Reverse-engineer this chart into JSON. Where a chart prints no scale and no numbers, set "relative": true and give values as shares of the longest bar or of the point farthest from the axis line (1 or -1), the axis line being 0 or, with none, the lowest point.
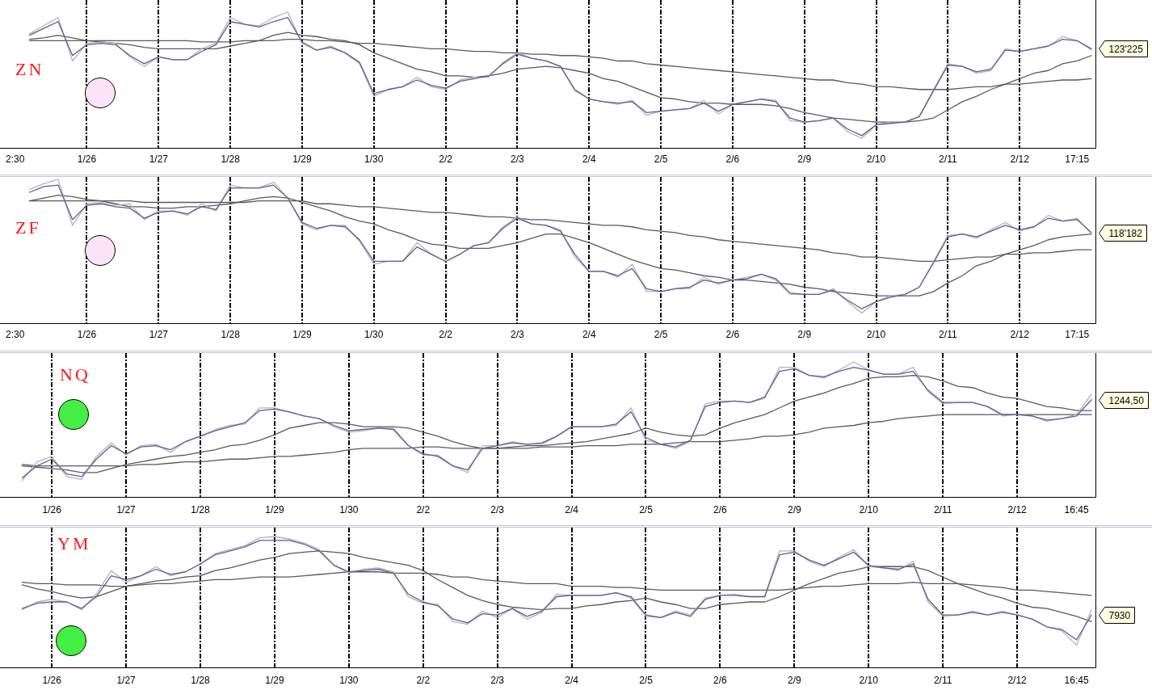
{
  "chart_data": [
    {
      "type": "line",
      "title": "ZN",
      "relative": true,
      "categories": [
        "2:30",
        null,
        null,
        null,
        null,
        "1/26",
        null,
        null,
        null,
        null,
        "1/27",
        null,
        null,
        null,
        null,
        "1/28",
        null,
        null,
        null,
        null,
        "1/29",
        null,
        null,
        null,
        null,
        "1/30",
        null,
        null,
        null,
        null,
        "2/2",
        null,
        null,
        null,
        null,
        "2/3",
        null,
        null,
        null,
        null,
        "2/4",
        null,
        null,
        null,
        null,
        "2/5",
        null,
        null,
        null,
        null,
        "2/6",
        null,
        null,
        null,
        null,
        "2/9",
        null,
        null,
        null,
        null,
        "2/10",
        null,
        null,
        null,
        null,
        "2/11",
        null,
        null,
        null,
        null,
        "2/12",
        null,
        null,
        null,
        "17:15",
        null
      ],
      "series": [
        {
          "color": "#5c5ca0",
          "values": [
            null,
            0.83,
            0.88,
            0.93,
            0.68,
            0.76,
            0.77,
            0.76,
            0.68,
            0.62,
            0.67,
            0.65,
            0.65,
            0.71,
            0.76,
            0.93,
            0.91,
            0.89,
            0.93,
            0.96,
            0.78,
            0.72,
            0.74,
            0.7,
            0.63,
            0.4,
            0.43,
            0.45,
            0.5,
            0.46,
            0.44,
            0.49,
            0.51,
            0.53,
            0.62,
            0.69,
            0.66,
            0.64,
            0.6,
            0.43,
            0.36,
            0.34,
            0.33,
            0.34,
            0.26,
            0.27,
            0.28,
            0.29,
            0.33,
            0.27,
            0.32,
            0.34,
            0.36,
            0.34,
            0.22,
            0.19,
            0.2,
            0.22,
            0.14,
            0.09,
            0.17,
            0.18,
            0.19,
            0.23,
            0.42,
            0.61,
            0.6,
            0.56,
            0.58,
            0.72,
            0.71,
            0.73,
            0.75,
            0.8,
            0.79,
            0.73
          ]
        },
        {
          "color": "#b4b4b4",
          "values": [
            null,
            0.84,
            0.9,
            0.96,
            0.64,
            0.77,
            0.78,
            0.77,
            0.67,
            0.6,
            0.67,
            0.65,
            0.65,
            0.73,
            0.77,
            0.96,
            0.91,
            0.9,
            0.96,
            1,
            0.77,
            0.72,
            0.75,
            0.7,
            0.62,
            0.38,
            0.43,
            0.45,
            0.52,
            0.45,
            0.43,
            0.5,
            0.52,
            0.52,
            0.63,
            0.7,
            0.66,
            0.64,
            0.6,
            0.42,
            0.36,
            0.34,
            0.32,
            0.35,
            0.24,
            0.27,
            0.28,
            0.29,
            0.35,
            0.25,
            0.32,
            0.34,
            0.36,
            0.35,
            0.2,
            0.19,
            0.2,
            0.22,
            0.12,
            0.07,
            0.17,
            0.19,
            0.19,
            0.23,
            0.43,
            0.62,
            0.6,
            0.55,
            0.57,
            0.73,
            0.71,
            0.73,
            0.75,
            0.82,
            0.79,
            0.72
          ]
        },
        {
          "color": "#5a5a5a",
          "values": [
            null,
            0.8,
            0.81,
            0.83,
            0.81,
            0.79,
            0.78,
            0.77,
            0.76,
            0.74,
            0.73,
            0.73,
            0.73,
            0.73,
            0.73,
            0.75,
            0.77,
            0.79,
            0.83,
            0.85,
            0.83,
            0.82,
            0.8,
            0.79,
            0.76,
            0.7,
            0.66,
            0.62,
            0.58,
            0.56,
            0.53,
            0.53,
            0.52,
            0.53,
            0.55,
            0.58,
            0.59,
            0.6,
            0.59,
            0.57,
            0.55,
            0.51,
            0.49,
            0.45,
            0.41,
            0.37,
            0.36,
            0.34,
            0.33,
            0.33,
            0.32,
            0.32,
            0.32,
            0.31,
            0.29,
            0.26,
            0.24,
            0.22,
            0.21,
            0.2,
            0.19,
            0.19,
            0.19,
            0.2,
            0.22,
            0.28,
            0.34,
            0.38,
            0.43,
            0.47,
            0.51,
            0.55,
            0.57,
            0.62,
            0.64,
            0.68
          ]
        },
        {
          "color": "#5a5a5a",
          "values": [
            null,
            0.79,
            0.79,
            0.79,
            0.79,
            0.79,
            0.79,
            0.79,
            0.79,
            0.79,
            0.79,
            0.79,
            0.79,
            0.78,
            0.78,
            0.78,
            0.79,
            0.79,
            0.79,
            0.8,
            0.8,
            0.79,
            0.79,
            0.78,
            0.77,
            0.77,
            0.76,
            0.75,
            0.74,
            0.73,
            0.73,
            0.72,
            0.71,
            0.71,
            0.7,
            0.7,
            0.69,
            0.69,
            0.68,
            0.68,
            0.67,
            0.66,
            0.64,
            0.64,
            0.62,
            0.61,
            0.6,
            0.59,
            0.58,
            0.57,
            0.56,
            0.55,
            0.54,
            0.53,
            0.52,
            0.51,
            0.5,
            0.5,
            0.48,
            0.47,
            0.45,
            0.45,
            0.44,
            0.43,
            0.43,
            0.43,
            0.44,
            0.45,
            0.45,
            0.47,
            0.47,
            0.48,
            0.49,
            0.5,
            0.5,
            0.51
          ]
        }
      ],
      "ref_lines": [
        {
          "axis": "x",
          "value": "1/26",
          "color": "#000000",
          "line_style": "dashed"
        },
        {
          "axis": "x",
          "value": "1/27",
          "color": "#000000",
          "line_style": "dashed"
        },
        {
          "axis": "x",
          "value": "1/28",
          "color": "#000000",
          "line_style": "dashed"
        },
        {
          "axis": "x",
          "value": "1/29",
          "color": "#000000",
          "line_style": "dashed"
        },
        {
          "axis": "x",
          "value": "1/30",
          "color": "#000000",
          "line_style": "dashed"
        },
        {
          "axis": "x",
          "value": "2/2",
          "color": "#000000",
          "line_style": "dashed"
        },
        {
          "axis": "x",
          "value": "2/3",
          "color": "#000000",
          "line_style": "dashed"
        },
        {
          "axis": "x",
          "value": "2/4",
          "color": "#000000",
          "line_style": "dashed"
        },
        {
          "axis": "x",
          "value": "2/5",
          "color": "#000000",
          "line_style": "dashed"
        },
        {
          "axis": "x",
          "value": "2/6",
          "color": "#000000",
          "line_style": "dashed"
        },
        {
          "axis": "x",
          "value": "2/9",
          "color": "#000000",
          "line_style": "dashed"
        },
        {
          "axis": "x",
          "value": "2/10",
          "color": "#000000",
          "line_style": "dashed"
        },
        {
          "axis": "x",
          "value": "2/11",
          "color": "#000000",
          "line_style": "dashed"
        },
        {
          "axis": "x",
          "value": "2/12",
          "color": "#000000",
          "line_style": "dashed"
        }
      ],
      "annotations": [
        "123'225"
      ]
    },
    {
      "type": "line",
      "title": "ZF",
      "relative": true,
      "categories": [
        "2:30",
        null,
        null,
        null,
        null,
        "1/26",
        null,
        null,
        null,
        null,
        "1/27",
        null,
        null,
        null,
        null,
        "1/28",
        null,
        null,
        null,
        null,
        "1/29",
        null,
        null,
        null,
        null,
        "1/30",
        null,
        null,
        null,
        null,
        "2/2",
        null,
        null,
        null,
        null,
        "2/3",
        null,
        null,
        null,
        null,
        "2/4",
        null,
        null,
        null,
        null,
        "2/5",
        null,
        null,
        null,
        null,
        "2/6",
        null,
        null,
        null,
        null,
        "2/9",
        null,
        null,
        null,
        null,
        "2/10",
        null,
        null,
        null,
        null,
        "2/11",
        null,
        null,
        null,
        null,
        "2/12",
        null,
        null,
        null,
        "17:15",
        null
      ],
      "series": [
        {
          "color": "#5c5ca0",
          "values": [
            null,
            0.91,
            0.95,
            0.96,
            0.72,
            0.82,
            0.83,
            0.81,
            0.8,
            0.73,
            0.77,
            0.78,
            0.76,
            0.81,
            0.79,
            0.94,
            0.94,
            0.94,
            0.96,
            0.87,
            0.7,
            0.66,
            0.68,
            0.67,
            0.58,
            0.43,
            0.43,
            0.43,
            0.53,
            0.48,
            0.43,
            0.48,
            0.54,
            0.56,
            0.66,
            0.73,
            0.69,
            0.68,
            0.64,
            0.48,
            0.36,
            0.36,
            0.33,
            0.38,
            0.24,
            0.22,
            0.24,
            0.25,
            0.3,
            0.28,
            0.3,
            0.31,
            0.34,
            0.31,
            0.21,
            0.2,
            0.2,
            0.23,
            0.16,
            0.1,
            0.15,
            0.18,
            0.2,
            0.25,
            0.42,
            0.6,
            0.62,
            0.6,
            0.64,
            0.68,
            0.65,
            0.67,
            0.73,
            0.71,
            0.72,
            0.63
          ]
        },
        {
          "color": "#b4b4b4",
          "values": [
            null,
            0.93,
            0.97,
            1,
            0.68,
            0.83,
            0.84,
            0.82,
            0.83,
            0.72,
            0.78,
            0.78,
            0.75,
            0.83,
            0.78,
            0.96,
            0.94,
            0.94,
            0.98,
            0.87,
            0.69,
            0.65,
            0.68,
            0.68,
            0.57,
            0.41,
            0.43,
            0.43,
            0.56,
            0.48,
            0.43,
            0.48,
            0.54,
            0.56,
            0.67,
            0.74,
            0.69,
            0.68,
            0.65,
            0.46,
            0.36,
            0.36,
            0.32,
            0.41,
            0.22,
            0.22,
            0.24,
            0.24,
            0.32,
            0.27,
            0.3,
            0.32,
            0.34,
            0.3,
            0.2,
            0.2,
            0.2,
            0.24,
            0.15,
            0.07,
            0.15,
            0.19,
            0.2,
            0.25,
            0.43,
            0.61,
            0.62,
            0.59,
            0.65,
            0.7,
            0.64,
            0.67,
            0.75,
            0.71,
            0.73,
            0.62
          ]
        },
        {
          "color": "#5a5a5a",
          "values": [
            null,
            0.85,
            0.87,
            0.89,
            0.88,
            0.86,
            0.85,
            0.83,
            0.81,
            0.81,
            0.8,
            0.8,
            0.81,
            0.81,
            0.82,
            0.83,
            0.85,
            0.87,
            0.88,
            0.87,
            0.84,
            0.81,
            0.78,
            0.74,
            0.71,
            0.69,
            0.65,
            0.62,
            0.58,
            0.55,
            0.54,
            0.52,
            0.52,
            0.52,
            0.54,
            0.56,
            0.59,
            0.62,
            0.62,
            0.59,
            0.56,
            0.52,
            0.48,
            0.44,
            0.41,
            0.38,
            0.37,
            0.35,
            0.33,
            0.32,
            0.3,
            0.3,
            0.29,
            0.28,
            0.27,
            0.25,
            0.24,
            0.22,
            0.21,
            0.2,
            0.19,
            0.19,
            0.19,
            0.19,
            0.22,
            0.28,
            0.33,
            0.4,
            0.43,
            0.48,
            0.51,
            0.54,
            0.58,
            0.6,
            0.61,
            0.62
          ]
        },
        {
          "color": "#5a5a5a",
          "values": [
            null,
            0.85,
            0.85,
            0.85,
            0.85,
            0.85,
            0.85,
            0.85,
            0.85,
            0.84,
            0.84,
            0.84,
            0.84,
            0.84,
            0.84,
            0.84,
            0.84,
            0.85,
            0.85,
            0.85,
            0.85,
            0.83,
            0.83,
            0.82,
            0.81,
            0.81,
            0.8,
            0.79,
            0.78,
            0.77,
            0.77,
            0.76,
            0.75,
            0.74,
            0.74,
            0.73,
            0.72,
            0.72,
            0.71,
            0.7,
            0.69,
            0.68,
            0.68,
            0.67,
            0.65,
            0.64,
            0.63,
            0.61,
            0.6,
            0.58,
            0.57,
            0.56,
            0.55,
            0.54,
            0.53,
            0.52,
            0.51,
            0.49,
            0.48,
            0.46,
            0.46,
            0.45,
            0.44,
            0.43,
            0.43,
            0.44,
            0.45,
            0.46,
            0.46,
            0.48,
            0.48,
            0.49,
            0.49,
            0.5,
            0.51,
            0.51
          ]
        }
      ],
      "ref_lines": [
        {
          "axis": "x",
          "value": "1/26",
          "color": "#000000",
          "line_style": "dashed"
        },
        {
          "axis": "x",
          "value": "1/27",
          "color": "#000000",
          "line_style": "dashed"
        },
        {
          "axis": "x",
          "value": "1/28",
          "color": "#000000",
          "line_style": "dashed"
        },
        {
          "axis": "x",
          "value": "1/29",
          "color": "#000000",
          "line_style": "dashed"
        },
        {
          "axis": "x",
          "value": "1/30",
          "color": "#000000",
          "line_style": "dashed"
        },
        {
          "axis": "x",
          "value": "2/2",
          "color": "#000000",
          "line_style": "dashed"
        },
        {
          "axis": "x",
          "value": "2/3",
          "color": "#000000",
          "line_style": "dashed"
        },
        {
          "axis": "x",
          "value": "2/4",
          "color": "#000000",
          "line_style": "dashed"
        },
        {
          "axis": "x",
          "value": "2/5",
          "color": "#000000",
          "line_style": "dashed"
        },
        {
          "axis": "x",
          "value": "2/6",
          "color": "#000000",
          "line_style": "dashed"
        },
        {
          "axis": "x",
          "value": "2/9",
          "color": "#000000",
          "line_style": "dashed"
        },
        {
          "axis": "x",
          "value": "2/10",
          "color": "#000000",
          "line_style": "dashed"
        },
        {
          "axis": "x",
          "value": "2/11",
          "color": "#000000",
          "line_style": "dashed"
        },
        {
          "axis": "x",
          "value": "2/12",
          "color": "#000000",
          "line_style": "dashed"
        }
      ],
      "annotations": [
        "118'182"
      ]
    },
    {
      "type": "line",
      "title": "NQ",
      "relative": true,
      "categories": [
        null,
        null,
        null,
        "1/26",
        null,
        null,
        null,
        null,
        "1/27",
        null,
        null,
        null,
        null,
        "1/28",
        null,
        null,
        null,
        null,
        "1/29",
        null,
        null,
        null,
        null,
        "1/30",
        null,
        null,
        null,
        null,
        "2/2",
        null,
        null,
        null,
        null,
        "2/3",
        null,
        null,
        null,
        null,
        "2/4",
        null,
        null,
        null,
        null,
        "2/5",
        null,
        null,
        null,
        null,
        "2/6",
        null,
        null,
        null,
        null,
        "2/9",
        null,
        null,
        null,
        null,
        "2/10",
        null,
        null,
        null,
        null,
        "2/11",
        null,
        null,
        null,
        null,
        "2/12",
        null,
        null,
        null,
        "16:45",
        null
      ],
      "series": [
        {
          "color": "#5c5ca0",
          "values": [
            null,
            0.14,
            0.23,
            0.28,
            0.17,
            0.15,
            0.28,
            0.38,
            0.32,
            0.37,
            0.38,
            0.35,
            0.41,
            0.45,
            0.49,
            0.52,
            0.55,
            0.64,
            0.65,
            0.63,
            0.6,
            0.58,
            0.53,
            0.49,
            0.5,
            0.51,
            0.5,
            0.38,
            0.32,
            0.3,
            0.23,
            0.2,
            0.36,
            0.38,
            0.4,
            0.39,
            0.4,
            0.45,
            0.52,
            0.52,
            0.52,
            0.54,
            0.63,
            0.44,
            0.39,
            0.37,
            0.42,
            0.67,
            0.7,
            0.71,
            0.7,
            0.74,
            0.93,
            0.95,
            0.9,
            0.89,
            0.93,
            0.96,
            0.94,
            0.91,
            0.91,
            0.93,
            0.79,
            0.7,
            0.7,
            0.7,
            0.67,
            0.61,
            0.61,
            0.6,
            0.57,
            0.58,
            0.6,
            0.72
          ]
        },
        {
          "color": "#b4b4b4",
          "values": [
            null,
            0.12,
            0.26,
            0.3,
            0.15,
            0.13,
            0.3,
            0.4,
            0.31,
            0.38,
            0.39,
            0.33,
            0.41,
            0.45,
            0.5,
            0.53,
            0.54,
            0.66,
            0.66,
            0.63,
            0.6,
            0.58,
            0.52,
            0.48,
            0.49,
            0.51,
            0.51,
            0.38,
            0.31,
            0.31,
            0.23,
            0.18,
            0.38,
            0.38,
            0.41,
            0.39,
            0.39,
            0.45,
            0.52,
            0.52,
            0.52,
            0.53,
            0.66,
            0.42,
            0.39,
            0.36,
            0.41,
            0.69,
            0.71,
            0.71,
            0.7,
            0.73,
            0.96,
            0.96,
            0.9,
            0.88,
            0.94,
            1,
            0.94,
            0.91,
            0.91,
            0.96,
            0.78,
            0.69,
            0.7,
            0.7,
            0.67,
            0.6,
            0.61,
            0.6,
            0.56,
            0.58,
            0.61,
            0.76
          ]
        },
        {
          "color": "#5a5a5a",
          "values": [
            null,
            0.23,
            0.22,
            0.21,
            0.2,
            0.18,
            0.18,
            0.21,
            0.24,
            0.26,
            0.28,
            0.3,
            0.31,
            0.33,
            0.35,
            0.38,
            0.39,
            0.42,
            0.46,
            0.51,
            0.53,
            0.55,
            0.55,
            0.54,
            0.52,
            0.52,
            0.52,
            0.51,
            0.48,
            0.45,
            0.41,
            0.38,
            0.36,
            0.36,
            0.37,
            0.38,
            0.38,
            0.39,
            0.4,
            0.41,
            0.43,
            0.45,
            0.47,
            0.51,
            0.48,
            0.46,
            0.45,
            0.46,
            0.51,
            0.55,
            0.58,
            0.61,
            0.66,
            0.71,
            0.74,
            0.77,
            0.81,
            0.84,
            0.88,
            0.89,
            0.89,
            0.9,
            0.89,
            0.86,
            0.82,
            0.81,
            0.77,
            0.74,
            0.73,
            0.7,
            0.67,
            0.66,
            0.64,
            0.64
          ]
        },
        {
          "color": "#5a5a5a",
          "values": [
            null,
            0.24,
            0.23,
            0.23,
            0.23,
            0.23,
            0.23,
            0.23,
            0.23,
            0.24,
            0.24,
            0.25,
            0.26,
            0.26,
            0.27,
            0.28,
            0.28,
            0.29,
            0.3,
            0.3,
            0.31,
            0.32,
            0.33,
            0.35,
            0.36,
            0.36,
            0.36,
            0.36,
            0.37,
            0.37,
            0.36,
            0.36,
            0.36,
            0.36,
            0.36,
            0.36,
            0.37,
            0.37,
            0.37,
            0.38,
            0.38,
            0.38,
            0.39,
            0.39,
            0.39,
            0.4,
            0.41,
            0.41,
            0.41,
            0.42,
            0.43,
            0.45,
            0.45,
            0.46,
            0.48,
            0.51,
            0.52,
            0.53,
            0.55,
            0.56,
            0.58,
            0.59,
            0.6,
            0.61,
            0.61,
            0.61,
            0.61,
            0.61,
            0.61,
            0.61,
            0.61,
            0.61,
            0.61,
            0.61
          ]
        }
      ],
      "ref_lines": [
        {
          "axis": "x",
          "value": "1/26",
          "color": "#000000",
          "line_style": "dashed"
        },
        {
          "axis": "x",
          "value": "1/27",
          "color": "#000000",
          "line_style": "dashed"
        },
        {
          "axis": "x",
          "value": "1/28",
          "color": "#000000",
          "line_style": "dashed"
        },
        {
          "axis": "x",
          "value": "1/29",
          "color": "#000000",
          "line_style": "dashed"
        },
        {
          "axis": "x",
          "value": "1/30",
          "color": "#000000",
          "line_style": "dashed"
        },
        {
          "axis": "x",
          "value": "2/2",
          "color": "#000000",
          "line_style": "dashed"
        },
        {
          "axis": "x",
          "value": "2/3",
          "color": "#000000",
          "line_style": "dashed"
        },
        {
          "axis": "x",
          "value": "2/4",
          "color": "#000000",
          "line_style": "dashed"
        },
        {
          "axis": "x",
          "value": "2/5",
          "color": "#000000",
          "line_style": "dashed"
        },
        {
          "axis": "x",
          "value": "2/6",
          "color": "#000000",
          "line_style": "dashed"
        },
        {
          "axis": "x",
          "value": "2/9",
          "color": "#000000",
          "line_style": "dashed"
        },
        {
          "axis": "x",
          "value": "2/10",
          "color": "#000000",
          "line_style": "dashed"
        },
        {
          "axis": "x",
          "value": "2/11",
          "color": "#000000",
          "line_style": "dashed"
        },
        {
          "axis": "x",
          "value": "2/12",
          "color": "#000000",
          "line_style": "dashed"
        }
      ],
      "annotations": [
        "1244,50"
      ]
    },
    {
      "type": "line",
      "title": "YM",
      "relative": true,
      "categories": [
        null,
        null,
        null,
        "1/26",
        null,
        null,
        null,
        null,
        "1/27",
        null,
        null,
        null,
        null,
        "1/28",
        null,
        null,
        null,
        null,
        "1/29",
        null,
        null,
        null,
        null,
        "1/30",
        null,
        null,
        null,
        null,
        "2/2",
        null,
        null,
        null,
        null,
        "2/3",
        null,
        null,
        null,
        null,
        "2/4",
        null,
        null,
        null,
        null,
        "2/5",
        null,
        null,
        null,
        null,
        "2/6",
        null,
        null,
        null,
        null,
        "2/9",
        null,
        null,
        null,
        null,
        "2/10",
        null,
        null,
        null,
        null,
        "2/11",
        null,
        null,
        null,
        null,
        "2/12",
        null,
        null,
        null,
        "16:45",
        null
      ],
      "series": [
        {
          "color": "#5c5ca0",
          "values": [
            null,
            0.45,
            0.49,
            0.5,
            0.5,
            0.45,
            0.54,
            0.7,
            0.67,
            0.7,
            0.75,
            0.71,
            0.73,
            0.79,
            0.86,
            0.89,
            0.92,
            0.97,
            0.97,
            0.97,
            0.94,
            0.89,
            0.78,
            0.73,
            0.74,
            0.75,
            0.72,
            0.56,
            0.5,
            0.47,
            0.37,
            0.34,
            0.41,
            0.4,
            0.45,
            0.39,
            0.43,
            0.54,
            0.55,
            0.55,
            0.55,
            0.57,
            0.54,
            0.4,
            0.38,
            0.42,
            0.39,
            0.52,
            0.55,
            0.55,
            0.54,
            0.54,
            0.86,
            0.88,
            0.82,
            0.78,
            0.83,
            0.88,
            0.78,
            0.76,
            0.75,
            0.79,
            0.52,
            0.4,
            0.4,
            0.42,
            0.4,
            0.42,
            0.4,
            0.37,
            0.31,
            0.29,
            0.21,
            0.4
          ]
        },
        {
          "color": "#b4b4b4",
          "values": [
            null,
            0.44,
            0.5,
            0.52,
            0.5,
            0.44,
            0.56,
            0.74,
            0.65,
            0.7,
            0.77,
            0.7,
            0.73,
            0.79,
            0.87,
            0.9,
            0.93,
            0.99,
            1,
            0.98,
            0.95,
            0.9,
            0.78,
            0.72,
            0.75,
            0.76,
            0.73,
            0.54,
            0.49,
            0.48,
            0.35,
            0.33,
            0.43,
            0.38,
            0.45,
            0.37,
            0.42,
            0.56,
            0.55,
            0.55,
            0.55,
            0.57,
            0.53,
            0.39,
            0.38,
            0.43,
            0.4,
            0.53,
            0.55,
            0.56,
            0.54,
            0.54,
            0.89,
            0.89,
            0.81,
            0.77,
            0.84,
            0.9,
            0.77,
            0.76,
            0.74,
            0.81,
            0.5,
            0.39,
            0.4,
            0.43,
            0.4,
            0.43,
            0.4,
            0.37,
            0.31,
            0.28,
            0.17,
            0.44
          ]
        },
        {
          "color": "#5a5a5a",
          "values": [
            null,
            0.63,
            0.6,
            0.58,
            0.55,
            0.53,
            0.54,
            0.58,
            0.62,
            0.64,
            0.66,
            0.67,
            0.69,
            0.7,
            0.74,
            0.76,
            0.79,
            0.82,
            0.84,
            0.87,
            0.88,
            0.89,
            0.88,
            0.87,
            0.84,
            0.82,
            0.8,
            0.78,
            0.74,
            0.67,
            0.61,
            0.55,
            0.51,
            0.48,
            0.46,
            0.45,
            0.44,
            0.45,
            0.45,
            0.47,
            0.48,
            0.5,
            0.51,
            0.53,
            0.5,
            0.48,
            0.45,
            0.45,
            0.48,
            0.49,
            0.5,
            0.5,
            0.54,
            0.59,
            0.64,
            0.68,
            0.72,
            0.74,
            0.77,
            0.77,
            0.77,
            0.77,
            0.74,
            0.69,
            0.64,
            0.6,
            0.56,
            0.53,
            0.49,
            0.46,
            0.45,
            0.42,
            0.39,
            0.35
          ]
        },
        {
          "color": "#5a5a5a",
          "values": [
            null,
            0.65,
            0.64,
            0.64,
            0.63,
            0.63,
            0.63,
            0.62,
            0.62,
            0.63,
            0.64,
            0.64,
            0.65,
            0.66,
            0.67,
            0.67,
            0.68,
            0.69,
            0.69,
            0.69,
            0.7,
            0.71,
            0.72,
            0.73,
            0.73,
            0.73,
            0.72,
            0.72,
            0.72,
            0.71,
            0.69,
            0.69,
            0.67,
            0.66,
            0.65,
            0.64,
            0.64,
            0.64,
            0.62,
            0.62,
            0.62,
            0.61,
            0.61,
            0.6,
            0.59,
            0.59,
            0.59,
            0.59,
            0.59,
            0.59,
            0.59,
            0.59,
            0.59,
            0.6,
            0.61,
            0.62,
            0.62,
            0.63,
            0.64,
            0.64,
            0.64,
            0.65,
            0.64,
            0.64,
            0.64,
            0.63,
            0.62,
            0.61,
            0.59,
            0.59,
            0.58,
            0.57,
            0.56,
            0.55
          ]
        }
      ],
      "ref_lines": [
        {
          "axis": "x",
          "value": "1/26",
          "color": "#000000",
          "line_style": "dashed"
        },
        {
          "axis": "x",
          "value": "1/27",
          "color": "#000000",
          "line_style": "dashed"
        },
        {
          "axis": "x",
          "value": "1/28",
          "color": "#000000",
          "line_style": "dashed"
        },
        {
          "axis": "x",
          "value": "1/29",
          "color": "#000000",
          "line_style": "dashed"
        },
        {
          "axis": "x",
          "value": "1/30",
          "color": "#000000",
          "line_style": "dashed"
        },
        {
          "axis": "x",
          "value": "2/2",
          "color": "#000000",
          "line_style": "dashed"
        },
        {
          "axis": "x",
          "value": "2/3",
          "color": "#000000",
          "line_style": "dashed"
        },
        {
          "axis": "x",
          "value": "2/4",
          "color": "#000000",
          "line_style": "dashed"
        },
        {
          "axis": "x",
          "value": "2/5",
          "color": "#000000",
          "line_style": "dashed"
        },
        {
          "axis": "x",
          "value": "2/6",
          "color": "#000000",
          "line_style": "dashed"
        },
        {
          "axis": "x",
          "value": "2/9",
          "color": "#000000",
          "line_style": "dashed"
        },
        {
          "axis": "x",
          "value": "2/10",
          "color": "#000000",
          "line_style": "dashed"
        },
        {
          "axis": "x",
          "value": "2/11",
          "color": "#000000",
          "line_style": "dashed"
        },
        {
          "axis": "x",
          "value": "2/12",
          "color": "#000000",
          "line_style": "dashed"
        }
      ],
      "annotations": [
        "7930"
      ]
    }
  ]
}
